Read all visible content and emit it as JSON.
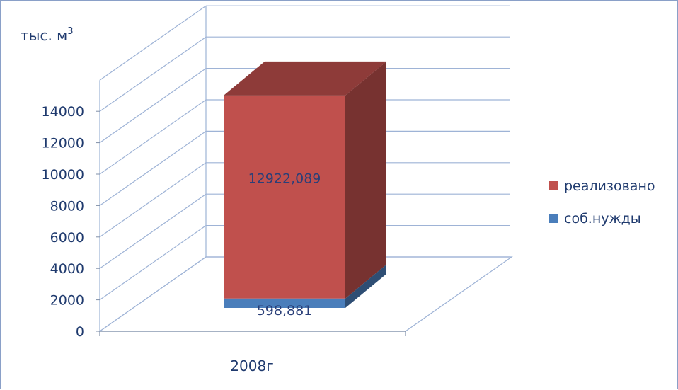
{
  "chart_data": {
    "type": "bar",
    "stacked": true,
    "three_d": true,
    "unit_label": "тыс. м",
    "unit_superscript": "3",
    "categories": [
      "2008г"
    ],
    "series": [
      {
        "name": "соб.нужды",
        "values": [
          598.881
        ],
        "label": "598,881",
        "color": "#4a7ebb"
      },
      {
        "name": "реализовано",
        "values": [
          12922.089
        ],
        "label": "12922,089",
        "color": "#c0504d"
      }
    ],
    "ylim": [
      0,
      14000
    ],
    "y_ticks": [
      "0",
      "2000",
      "4000",
      "6000",
      "8000",
      "10000",
      "12000",
      "14000"
    ],
    "grid": true,
    "legend_position": "right"
  }
}
